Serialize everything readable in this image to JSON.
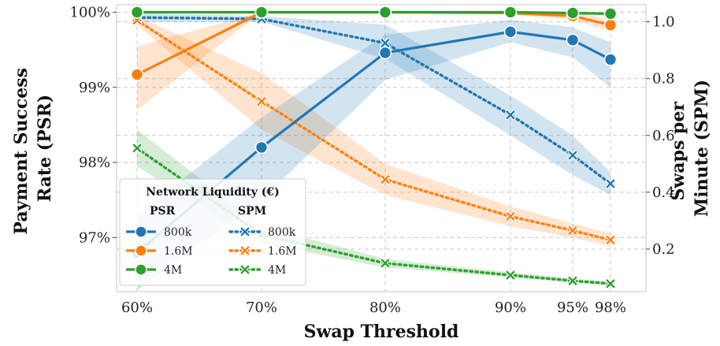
{
  "chart_data": {
    "type": "line",
    "xlabel": "Swap Threshold",
    "ylabel_left_lines": [
      "Payment Success",
      "Rate (PSR)"
    ],
    "ylabel_right_lines": [
      "Swaps per",
      "Minute (SPM)"
    ],
    "x": [
      60,
      70,
      80,
      90,
      95,
      98
    ],
    "x_tick_labels": [
      "60%",
      "70%",
      "80%",
      "90%",
      "95%",
      "98%"
    ],
    "x_scale": "custom-nonlinear",
    "y_left": {
      "ylim": [
        96.28,
        100.1
      ],
      "ticks": [
        97,
        98,
        99,
        100
      ],
      "tick_labels": [
        "97%",
        "98%",
        "99%",
        "100%"
      ]
    },
    "y_right": {
      "ylim": [
        0.05,
        1.06
      ],
      "ticks": [
        0.2,
        0.4,
        0.6,
        0.8,
        1.0
      ],
      "tick_labels": [
        "0.2",
        "0.4",
        "0.6",
        "0.8",
        "1.0"
      ]
    },
    "grid": true,
    "legend": {
      "title": "Network Liquidity (€)",
      "placement": "lower-left",
      "column_headers": [
        "PSR",
        "SPM"
      ],
      "entries": [
        "800k",
        "1.6M",
        "4M"
      ]
    },
    "colors": {
      "800k": "#1f77b4",
      "1.6M": "#ff7f0e",
      "4M": "#2ca02c"
    },
    "series": [
      {
        "name": "800k",
        "metric": "PSR",
        "axis": "left",
        "marker": "circle",
        "values": [
          96.8,
          98.2,
          99.46,
          99.74,
          99.63,
          99.37
        ],
        "ci_lower": [
          96.3,
          97.5,
          99.1,
          99.6,
          99.4,
          99.0
        ],
        "ci_upper": [
          97.3,
          98.6,
          99.7,
          99.9,
          99.8,
          99.6
        ]
      },
      {
        "name": "1.6M",
        "metric": "PSR",
        "axis": "left",
        "marker": "circle",
        "values": [
          99.17,
          100.0,
          100.0,
          99.99,
          99.95,
          99.83
        ],
        "ci_lower": [
          98.7,
          100.0,
          100.0,
          99.97,
          99.9,
          99.75
        ],
        "ci_upper": [
          99.55,
          100.0,
          100.0,
          100.0,
          100.0,
          99.9
        ]
      },
      {
        "name": "4M",
        "metric": "PSR",
        "axis": "left",
        "marker": "circle",
        "values": [
          100.0,
          100.0,
          100.0,
          100.0,
          99.99,
          99.98
        ],
        "ci_lower": [
          100.0,
          100.0,
          100.0,
          99.99,
          99.97,
          99.96
        ],
        "ci_upper": [
          100.0,
          100.0,
          100.0,
          100.0,
          100.0,
          100.0
        ]
      },
      {
        "name": "800k",
        "metric": "SPM",
        "axis": "right",
        "marker": "x",
        "values": [
          1.015,
          1.01,
          0.925,
          0.672,
          0.53,
          0.43
        ],
        "ci_lower": [
          1.0,
          1.0,
          0.87,
          0.6,
          0.46,
          0.39
        ],
        "ci_upper": [
          1.03,
          1.02,
          0.99,
          0.74,
          0.6,
          0.47
        ]
      },
      {
        "name": "1.6M",
        "metric": "SPM",
        "axis": "right",
        "marker": "x",
        "values": [
          1.005,
          0.72,
          0.445,
          0.315,
          0.265,
          0.232
        ],
        "ci_lower": [
          0.99,
          0.62,
          0.39,
          0.28,
          0.24,
          0.21
        ],
        "ci_upper": [
          1.02,
          0.82,
          0.5,
          0.35,
          0.29,
          0.255
        ]
      },
      {
        "name": "4M",
        "metric": "SPM",
        "axis": "right",
        "marker": "x",
        "values": [
          0.555,
          0.25,
          0.15,
          0.108,
          0.088,
          0.078
        ],
        "ci_lower": [
          0.49,
          0.22,
          0.135,
          0.1,
          0.082,
          0.072
        ],
        "ci_upper": [
          0.62,
          0.28,
          0.165,
          0.118,
          0.096,
          0.086
        ]
      }
    ]
  }
}
